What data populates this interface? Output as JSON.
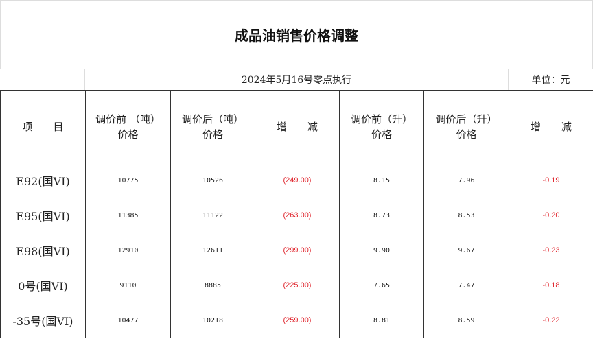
{
  "title": "成品油销售价格调整",
  "subheader": {
    "date": "2024年5月16号零点执行",
    "unit": "单位：元"
  },
  "colors": {
    "negative": "#e0262e"
  },
  "columns": [
    "项　目",
    "调价前 （吨）价格",
    "调价后（吨）价格",
    "增　减",
    "调价前（升）价格",
    "调价后（升）价格",
    "增　减"
  ],
  "columns_lines": [
    [
      "项　　目"
    ],
    [
      "调价前 （吨）",
      "价格"
    ],
    [
      "调价后（吨）",
      "价格"
    ],
    [
      "增　　减"
    ],
    [
      "调价前（升）",
      "价格"
    ],
    [
      "调价后（升）",
      "价格"
    ],
    [
      "增　　减"
    ]
  ],
  "rows": [
    [
      "E92(国VI)",
      "10775",
      "10526",
      "(249.00)",
      "8.15",
      "7.96",
      "-0.19"
    ],
    [
      "E95(国VI)",
      "11385",
      "11122",
      "(263.00)",
      "8.73",
      "8.53",
      "-0.20"
    ],
    [
      "E98(国VI)",
      "12910",
      "12611",
      "(299.00)",
      "9.90",
      "9.67",
      "-0.23"
    ],
    [
      "0号(国VI)",
      "9110",
      "8885",
      "(225.00)",
      "7.65",
      "7.47",
      "-0.18"
    ],
    [
      "-35号(国VI)",
      "10477",
      "10218",
      "(259.00)",
      "8.81",
      "8.59",
      "-0.22"
    ]
  ]
}
